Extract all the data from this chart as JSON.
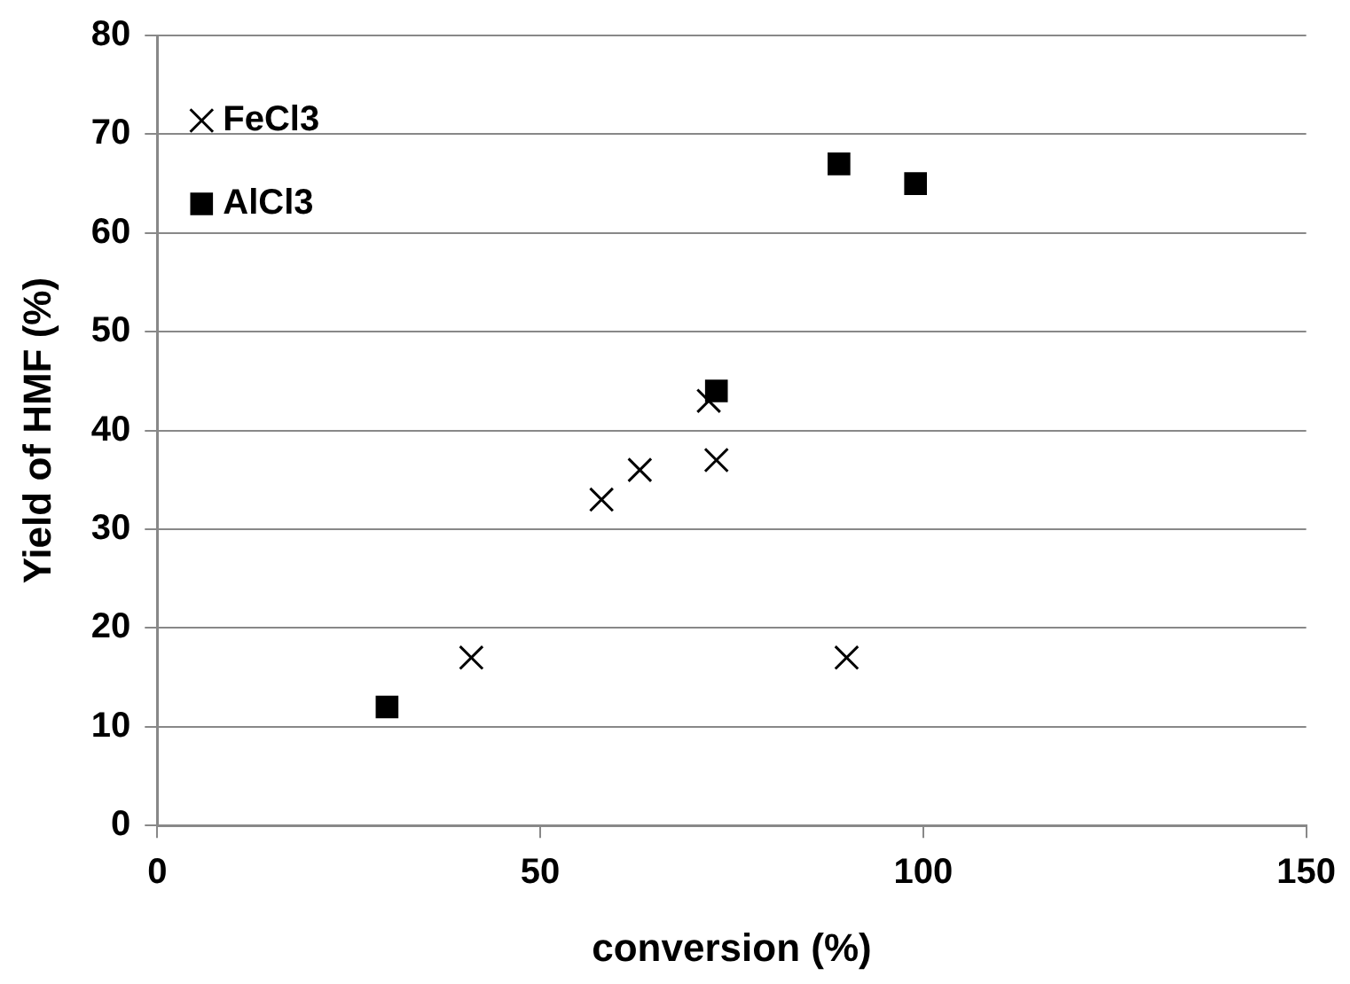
{
  "chart_data": {
    "type": "scatter",
    "xlabel": "conversion (%)",
    "ylabel": "Yield of HMF (%)",
    "xlim": [
      0,
      150
    ],
    "xticks": [
      0,
      50,
      100,
      150
    ],
    "ylim": [
      0,
      80
    ],
    "yticks": [
      0,
      10,
      20,
      30,
      40,
      50,
      60,
      70,
      80
    ],
    "grid": "y",
    "legend": "top left",
    "series": [
      {
        "name": "FeCl3",
        "color": "#000000",
        "marker": "cross",
        "x": [
          41,
          58,
          63,
          72,
          73,
          90
        ],
        "values": [
          17,
          33,
          36,
          43,
          37,
          17
        ]
      },
      {
        "name": "AlCl3",
        "color": "#000000",
        "marker": "square",
        "x": [
          30,
          73,
          89,
          99
        ],
        "values": [
          12,
          44,
          67,
          65
        ]
      }
    ]
  }
}
